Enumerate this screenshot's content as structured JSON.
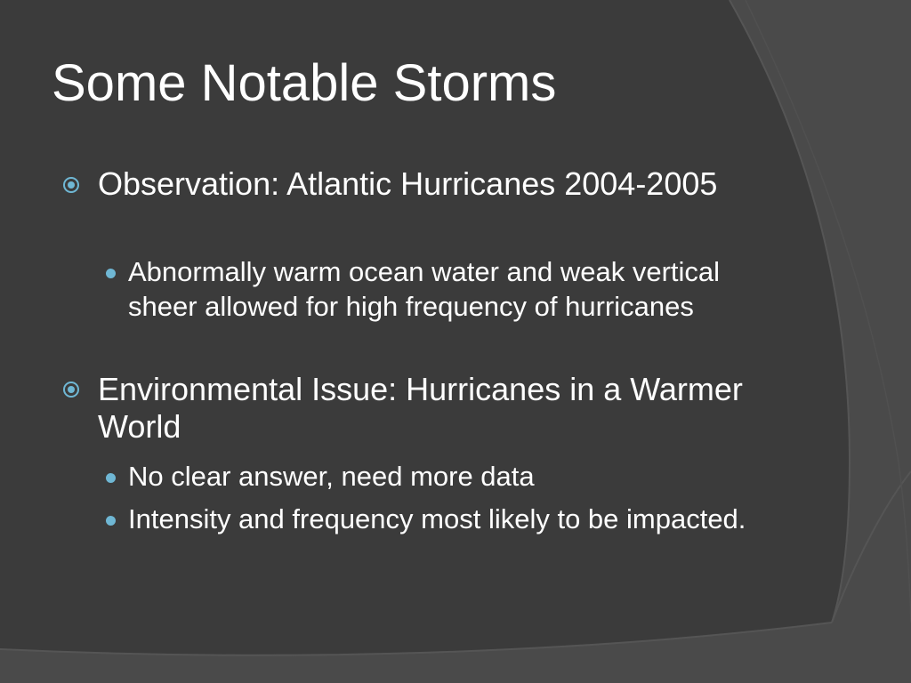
{
  "slide": {
    "title": "Some Notable Storms",
    "bullets": [
      {
        "text": "Observation: Atlantic Hurricanes 2004-2005",
        "sub": [
          "Abnormally warm ocean water and weak vertical sheer allowed for high frequency of hurricanes"
        ]
      },
      {
        "text": "Environmental Issue: Hurricanes in a Warmer World",
        "sub": [
          "No clear answer, need more data",
          "Intensity and frequency most likely to be impacted."
        ]
      }
    ]
  },
  "colors": {
    "background_dark": "#3b3b3b",
    "background_light": "#4a4a4a",
    "bullet_accent": "#6fb7d4",
    "text": "#ffffff"
  },
  "icons": {
    "level1_bullet": "circled-dot-icon",
    "level2_bullet": "filled-circle-icon"
  }
}
